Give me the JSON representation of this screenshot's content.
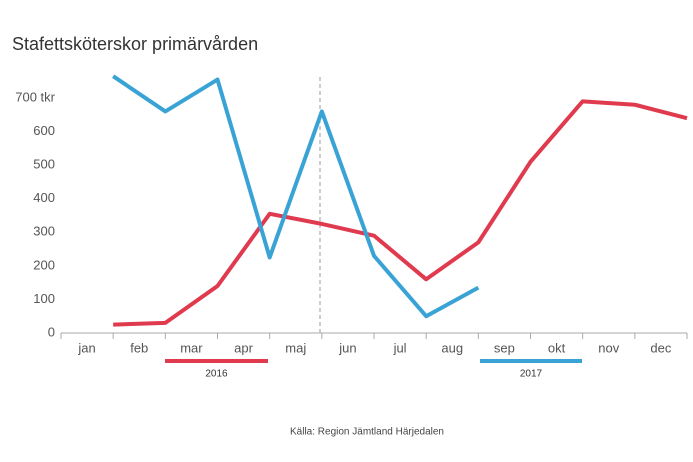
{
  "chart_data": {
    "type": "line",
    "title": "Stafettsköterskor primärvården",
    "source": "Källa: Region Jämtland Härjedalen",
    "categories": [
      "jan",
      "feb",
      "mar",
      "apr",
      "maj",
      "jun",
      "jul",
      "aug",
      "sep",
      "okt",
      "nov",
      "dec"
    ],
    "series": [
      {
        "name": "2016",
        "color": "#e03a4e",
        "values": [
          25,
          30,
          140,
          355,
          325,
          290,
          160,
          270,
          510,
          690,
          680,
          640
        ]
      },
      {
        "name": "2017",
        "color": "#3aa3d6",
        "values": [
          765,
          660,
          755,
          225,
          660,
          230,
          50,
          135,
          null,
          null,
          null,
          null
        ]
      }
    ],
    "ylim": [
      0,
      700
    ],
    "yticks": [
      0,
      100,
      200,
      300,
      400,
      500,
      600,
      {
        "value": 700,
        "label": "700 tkr"
      }
    ]
  }
}
